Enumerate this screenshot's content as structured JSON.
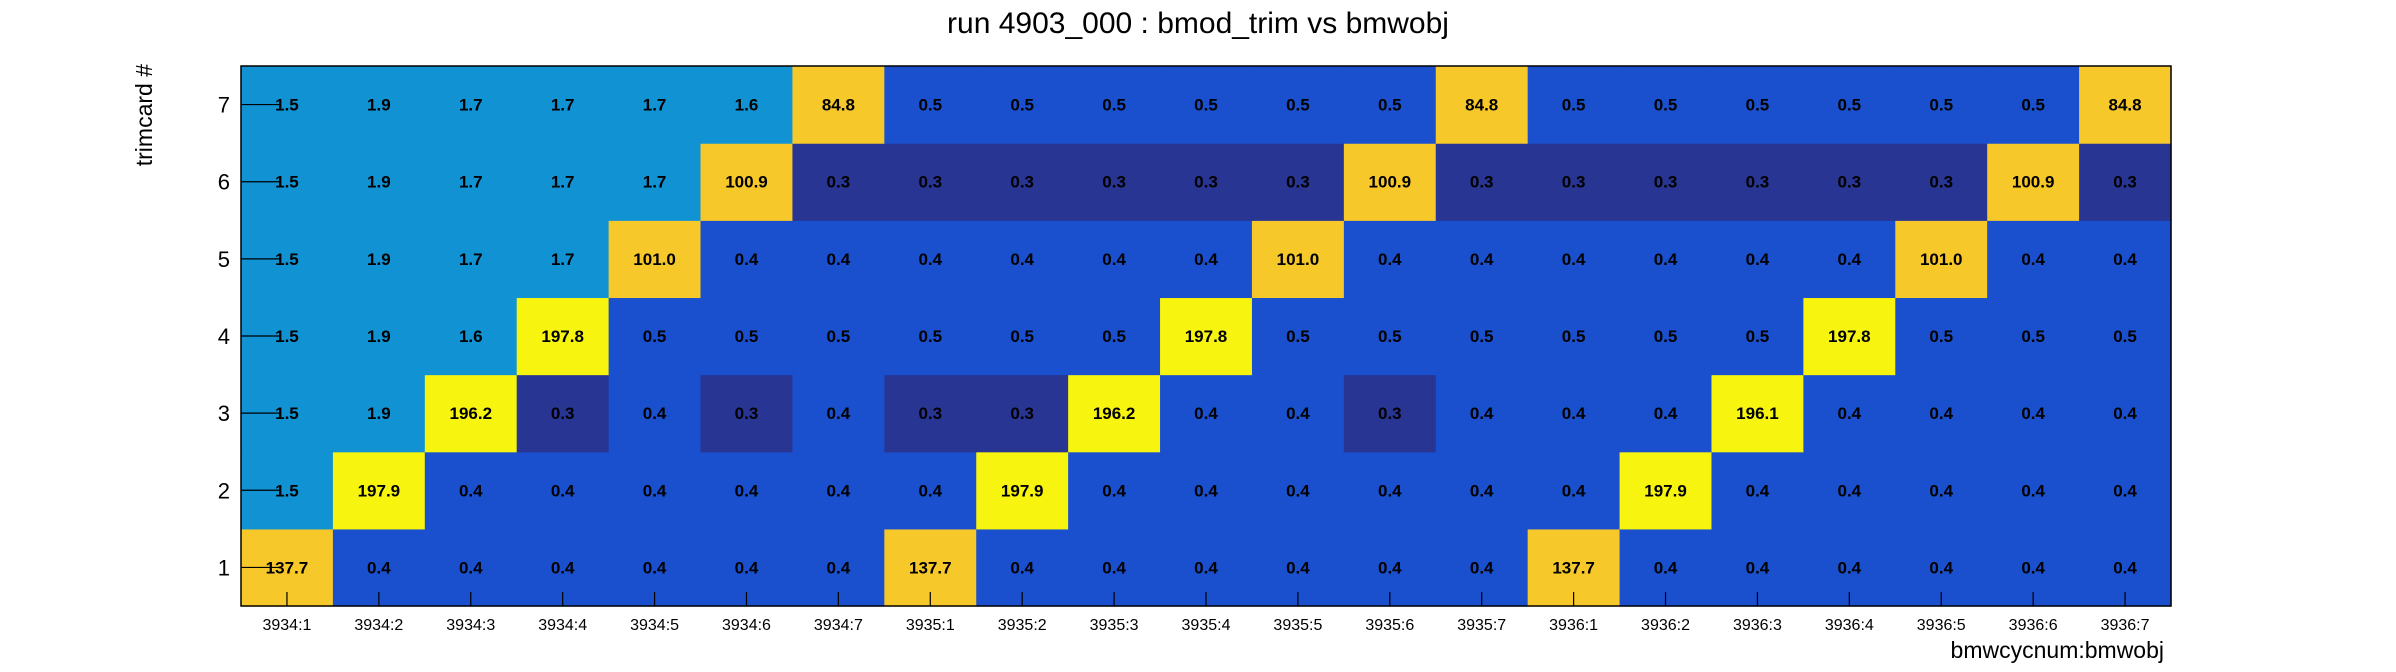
{
  "chart_data": {
    "type": "heatmap",
    "title": "run 4903_000 : bmod_trim vs bmwobj",
    "xlabel": "bmwcycnum:bmwobj",
    "ylabel": "trimcard #",
    "x_categories": [
      "3934:1",
      "3934:2",
      "3934:3",
      "3934:4",
      "3934:5",
      "3934:6",
      "3934:7",
      "3935:1",
      "3935:2",
      "3935:3",
      "3935:4",
      "3935:5",
      "3935:6",
      "3935:7",
      "3936:1",
      "3936:2",
      "3936:3",
      "3936:4",
      "3936:5",
      "3936:6",
      "3936:7"
    ],
    "y_categories": [
      "1",
      "2",
      "3",
      "4",
      "5",
      "6",
      "7"
    ],
    "values": [
      [
        137.7,
        0.4,
        0.4,
        0.4,
        0.4,
        0.4,
        0.4,
        137.7,
        0.4,
        0.4,
        0.4,
        0.4,
        0.4,
        0.4,
        137.7,
        0.4,
        0.4,
        0.4,
        0.4,
        0.4,
        0.4
      ],
      [
        1.5,
        197.9,
        0.4,
        0.4,
        0.4,
        0.4,
        0.4,
        0.4,
        197.9,
        0.4,
        0.4,
        0.4,
        0.4,
        0.4,
        0.4,
        197.9,
        0.4,
        0.4,
        0.4,
        0.4,
        0.4
      ],
      [
        1.5,
        1.9,
        196.2,
        0.3,
        0.4,
        0.3,
        0.4,
        0.3,
        0.3,
        196.2,
        0.4,
        0.4,
        0.3,
        0.4,
        0.4,
        0.4,
        196.1,
        0.4,
        0.4,
        0.4,
        0.4
      ],
      [
        1.5,
        1.9,
        1.6,
        197.8,
        0.5,
        0.5,
        0.5,
        0.5,
        0.5,
        0.5,
        197.8,
        0.5,
        0.5,
        0.5,
        0.5,
        0.5,
        0.5,
        197.8,
        0.5,
        0.5,
        0.5
      ],
      [
        1.5,
        1.9,
        1.7,
        1.7,
        101.0,
        0.4,
        0.4,
        0.4,
        0.4,
        0.4,
        0.4,
        101.0,
        0.4,
        0.4,
        0.4,
        0.4,
        0.4,
        0.4,
        101.0,
        0.4,
        0.4
      ],
      [
        1.5,
        1.9,
        1.7,
        1.7,
        1.7,
        100.9,
        0.3,
        0.3,
        0.3,
        0.3,
        0.3,
        0.3,
        100.9,
        0.3,
        0.3,
        0.3,
        0.3,
        0.3,
        0.3,
        100.9,
        0.3
      ],
      [
        1.5,
        1.9,
        1.7,
        1.7,
        1.7,
        1.6,
        84.8,
        0.5,
        0.5,
        0.5,
        0.5,
        0.5,
        0.5,
        84.8,
        0.5,
        0.5,
        0.5,
        0.5,
        0.5,
        0.5,
        84.8
      ]
    ],
    "value_format": "one decimal",
    "colors": {
      "darkest": "#283593",
      "dark": "#1a4fcd",
      "mid": "#1192d3",
      "orange": "#f7c82a",
      "yellow": "#f7f40f",
      "frame": "#000000"
    },
    "grid": false,
    "legend": "none"
  }
}
